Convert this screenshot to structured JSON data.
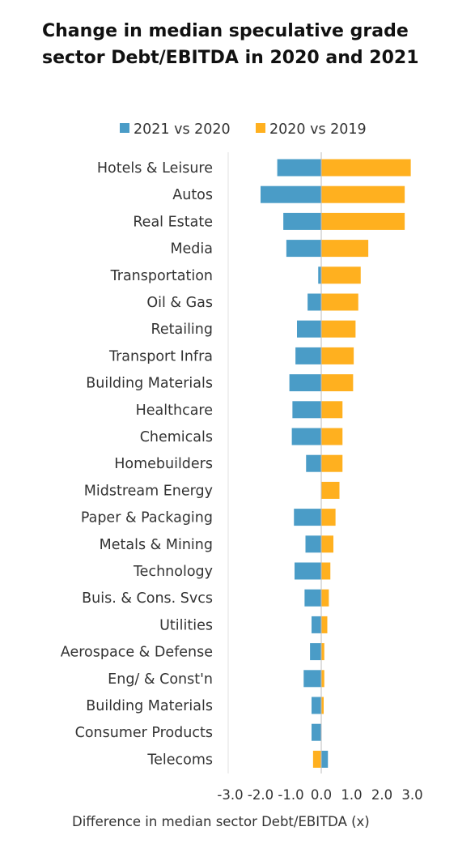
{
  "chart_data": {
    "type": "bar",
    "orientation": "horizontal",
    "title": "Change in median speculative grade sector Debt/EBITDA in 2020 and 2021",
    "xlabel": "Difference in median sector Debt/EBITDA (x)",
    "ylabel": "",
    "xlim": [
      -3.0,
      3.0
    ],
    "x_ticks": [
      "-3.0",
      "-2.0",
      "-1.0",
      "0.0",
      "1.0",
      "2.0",
      "3.0"
    ],
    "legend_position": "top",
    "categories": [
      "Hotels & Leisure",
      "Autos",
      "Real Estate",
      "Media",
      "Transportation",
      "Oil & Gas",
      "Retailing",
      "Transport Infra",
      "Building Materials",
      "Healthcare",
      "Chemicals",
      "Homebuilders",
      "Midstream Energy",
      "Paper & Packaging",
      "Metals & Mining",
      "Technology",
      "Buis. & Cons. Svcs",
      "Utilities",
      "Aerospace & Defense",
      "Eng/ & Const'n",
      "Building Materials",
      "Consumer Products",
      "Telecoms"
    ],
    "series": [
      {
        "name": "2021 vs 2020",
        "color": "#4a9cc7",
        "values": [
          -1.45,
          -2.0,
          -1.25,
          -1.15,
          -0.1,
          -0.45,
          -0.8,
          -0.85,
          -1.05,
          -0.95,
          -0.97,
          -0.5,
          0.0,
          -0.9,
          -0.52,
          -0.88,
          -0.55,
          -0.32,
          -0.37,
          -0.58,
          -0.32,
          -0.32,
          0.22
        ]
      },
      {
        "name": "2020 vs 2019",
        "color": "#ffb01f",
        "values": [
          2.95,
          2.75,
          2.75,
          1.55,
          1.3,
          1.22,
          1.13,
          1.07,
          1.05,
          0.7,
          0.7,
          0.7,
          0.6,
          0.47,
          0.4,
          0.3,
          0.25,
          0.2,
          0.1,
          0.1,
          0.08,
          0.0,
          -0.27
        ]
      }
    ]
  }
}
